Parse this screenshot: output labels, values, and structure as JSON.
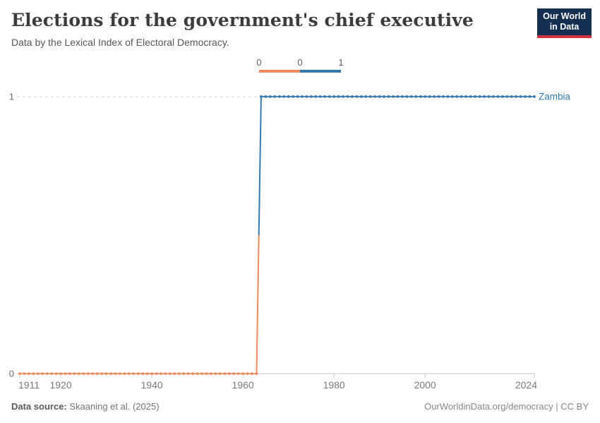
{
  "header": {
    "title": "Elections for the government's chief executive",
    "subtitle": "Data by the Lexical Index of Electoral Democracy.",
    "logo": {
      "line1": "Our World",
      "line2": "in Data"
    }
  },
  "legend": {
    "tick_labels": [
      "0",
      "0",
      "1"
    ],
    "segments": [
      {
        "value": "0",
        "color": "#ee8c60"
      },
      {
        "value": "1",
        "color": "#3579b1"
      }
    ]
  },
  "chart_data": {
    "type": "line",
    "title": "Elections for the government's chief executive",
    "subtitle": "Data by the Lexical Index of Electoral Democracy.",
    "entity": "Zambia",
    "xlabel": "",
    "ylabel": "",
    "x": {
      "min": 1911,
      "max": 2024,
      "ticks": [
        1911,
        1920,
        1940,
        1960,
        1980,
        2000,
        2024
      ]
    },
    "y": {
      "min": 0,
      "max": 1,
      "ticks": [
        0,
        1
      ]
    },
    "grid": "dashed horizontal gridline at y max, solid axis at y min",
    "legend_position": "top-center",
    "series": [
      {
        "name": "Zambia",
        "color_by_value": {
          "0": "#ee8c60",
          "1": "#3579b1"
        },
        "segments": [
          {
            "start_year": 1911,
            "end_year": 1963,
            "value": 0
          },
          {
            "start_year": 1964,
            "end_year": 2024,
            "value": 1
          }
        ]
      }
    ]
  },
  "colors": {
    "value0": "#ee8c60",
    "value1": "#3579b1",
    "entity_label": "#3579b1",
    "axis": "#c8c8c8",
    "gridline": "#d6d6d6",
    "tick_text": "#7a7a7a"
  },
  "footer": {
    "source_label": "Data source:",
    "source_value": " Skaaning et al. (2025)",
    "right_text": "OurWorldinData.org/democracy | CC BY"
  }
}
